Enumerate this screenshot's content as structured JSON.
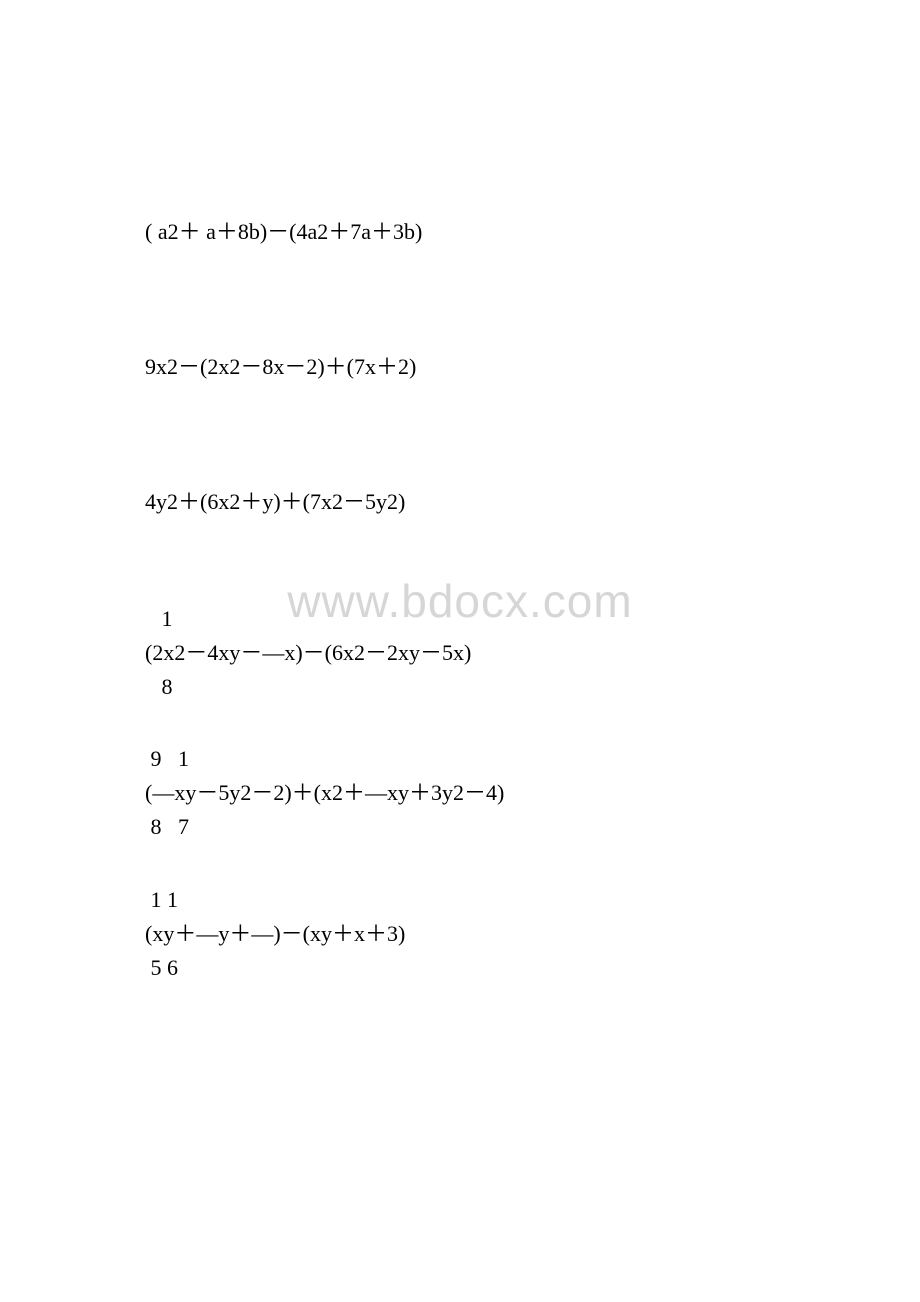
{
  "watermark": "www.bdocx.com",
  "expressions": {
    "e1": "( a2＋ a＋8b)－(4a2＋7a＋3b)",
    "e2": "9x2－(2x2－8x－2)＋(7x＋2)",
    "e3": "4y2＋(6x2＋y)＋(7x2－5y2)",
    "f1_top": "   1",
    "f1_mid": "(2x2－4xy－—x)－(6x2－2xy－5x)",
    "f1_bot": "   8",
    "f2_top": " 9   1",
    "f2_mid": "(—xy－5y2－2)＋(x2＋—xy＋3y2－4)",
    "f2_bot": " 8   7",
    "f3_top": " 1 1",
    "f3_mid": "(xy＋—y＋—)－(xy＋x＋3)",
    "f3_bot": " 5 6"
  },
  "colors": {
    "text": "#000000",
    "background": "#ffffff",
    "watermark": "#d6d6d6"
  },
  "typography": {
    "body_fontsize": 22,
    "watermark_fontsize": 46
  }
}
